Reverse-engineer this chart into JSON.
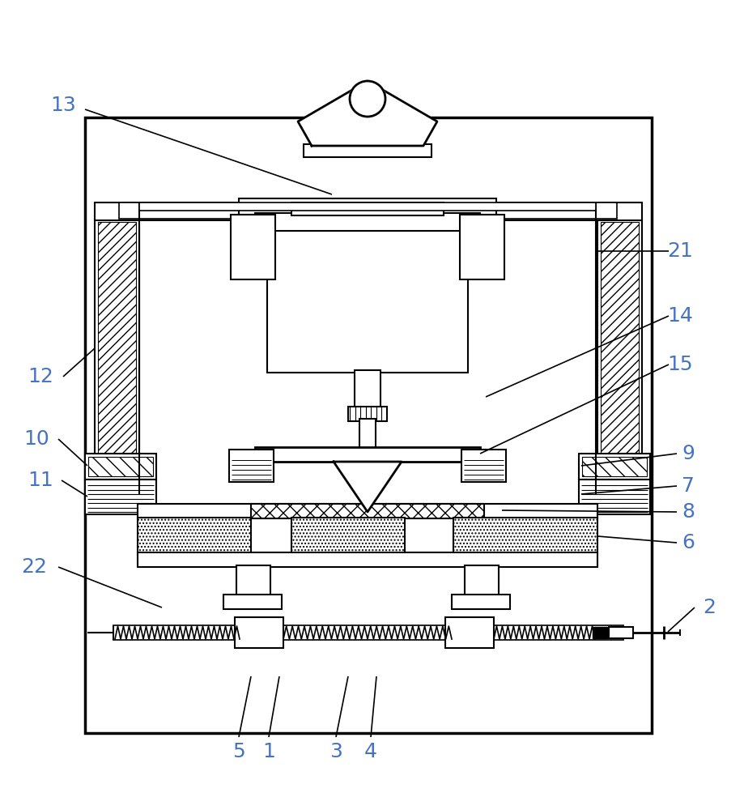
{
  "background_color": "#ffffff",
  "line_color": "#000000",
  "label_color": "#4472c4",
  "figsize": [
    9.19,
    10.0
  ],
  "dpi": 100
}
